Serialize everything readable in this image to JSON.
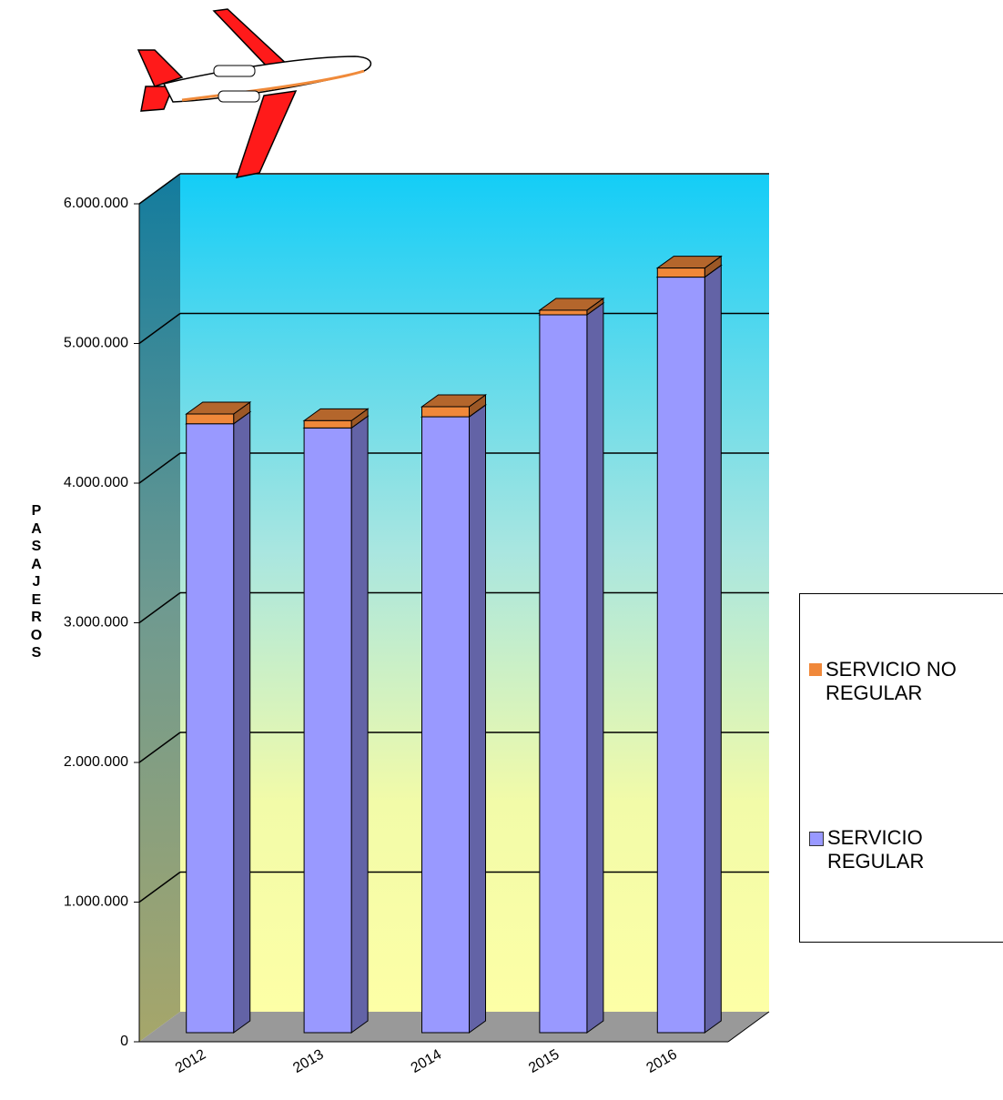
{
  "chart_data": {
    "type": "bar",
    "stacked": true,
    "y_label": "PASAJEROS",
    "categories": [
      "2012",
      "2013",
      "2014",
      "2015",
      "2016"
    ],
    "series": [
      {
        "name": "SERVICIO REGULAR",
        "color": "#9999ff",
        "values": [
          4360000,
          4330000,
          4410000,
          5140000,
          5410000
        ]
      },
      {
        "name": "SERVICIO NO REGULAR",
        "color": "#f0883a",
        "values": [
          70000,
          52000,
          72000,
          33000,
          65000
        ]
      }
    ],
    "ylim": [
      0,
      6000000
    ],
    "yticks": [
      0,
      {
        "value": 1000000,
        "label": "1.000.000"
      },
      {
        "value": 2000000,
        "label": "2.000.000"
      },
      {
        "value": 3000000,
        "label": "3.000.000"
      },
      {
        "value": 4000000,
        "label": "4.000.000"
      },
      {
        "value": 5000000,
        "label": "5.000.000"
      },
      {
        "value": 6000000,
        "label": "6.000.000"
      }
    ],
    "grid": true,
    "legend": "right"
  }
}
